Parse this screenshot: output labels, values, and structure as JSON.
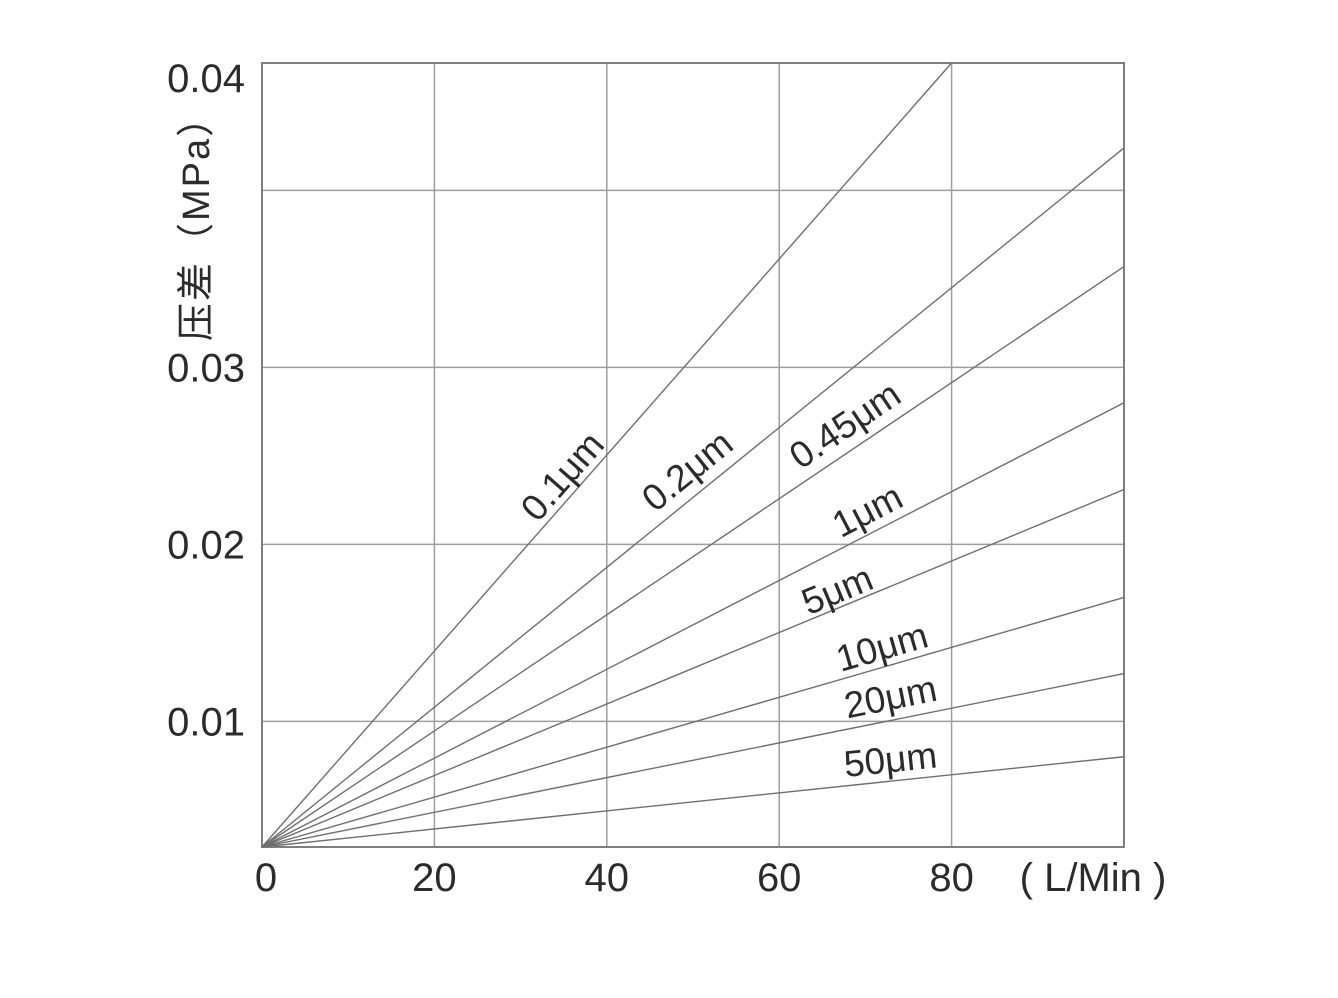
{
  "figure": {
    "background": "#ffffff",
    "frame_color": "#7f7f7f",
    "grid_color": "#9e9e9e",
    "series_color": "#6f6f6f",
    "text_color": "#2b2b2b"
  },
  "chart_data": {
    "type": "line",
    "title": "",
    "xlabel": "( L/Min )",
    "ylabel": "压差（MPa）",
    "xlim": [
      0,
      100
    ],
    "ylim": [
      0.0029,
      0.0472
    ],
    "grid": true,
    "legend_position": "inline-labels-above-lines",
    "x_ticks": [
      {
        "value": 0,
        "label": "0"
      },
      {
        "value": 20,
        "label": "20"
      },
      {
        "value": 40,
        "label": "40"
      },
      {
        "value": 60,
        "label": "60"
      },
      {
        "value": 80,
        "label": "80"
      }
    ],
    "y_ticks": [
      {
        "value": 0.01,
        "label": "0.01"
      },
      {
        "value": 0.02,
        "label": "0.02"
      },
      {
        "value": 0.03,
        "label": "0.03"
      },
      {
        "value": 0.04,
        "label": "0.04",
        "label_at_top": true
      }
    ],
    "series": [
      {
        "name": "0.1μm",
        "points": [
          [
            0,
            0.0029
          ],
          [
            80,
            0.0472
          ]
        ],
        "label_x": 34.8,
        "label_dy": 30
      },
      {
        "name": "0.2μm",
        "points": [
          [
            0,
            0.0029
          ],
          [
            100,
            0.0424
          ]
        ],
        "label_x": 49.3,
        "label_dy": 32
      },
      {
        "name": "0.45μm",
        "points": [
          [
            0,
            0.0029
          ],
          [
            100,
            0.0357
          ]
        ],
        "label_x": 67.6,
        "label_dy": 30
      },
      {
        "name": "1μm",
        "points": [
          [
            0,
            0.0029
          ],
          [
            100,
            0.028
          ]
        ],
        "label_x": 70.2,
        "label_dy": 25
      },
      {
        "name": "5μm",
        "points": [
          [
            0,
            0.0029
          ],
          [
            100,
            0.0231
          ]
        ],
        "label_x": 66.7,
        "label_dy": 19
      },
      {
        "name": "10μm",
        "points": [
          [
            0,
            0.0029
          ],
          [
            100,
            0.017
          ]
        ],
        "label_x": 71.9,
        "label_dy": 21
      },
      {
        "name": "20μm",
        "points": [
          [
            0,
            0.0029
          ],
          [
            100,
            0.0127
          ]
        ],
        "label_x": 72.9,
        "label_dy": 24
      },
      {
        "name": "50μm",
        "points": [
          [
            0,
            0.0029
          ],
          [
            100,
            0.008
          ]
        ],
        "label_x": 72.9,
        "label_dy": 22
      }
    ]
  }
}
